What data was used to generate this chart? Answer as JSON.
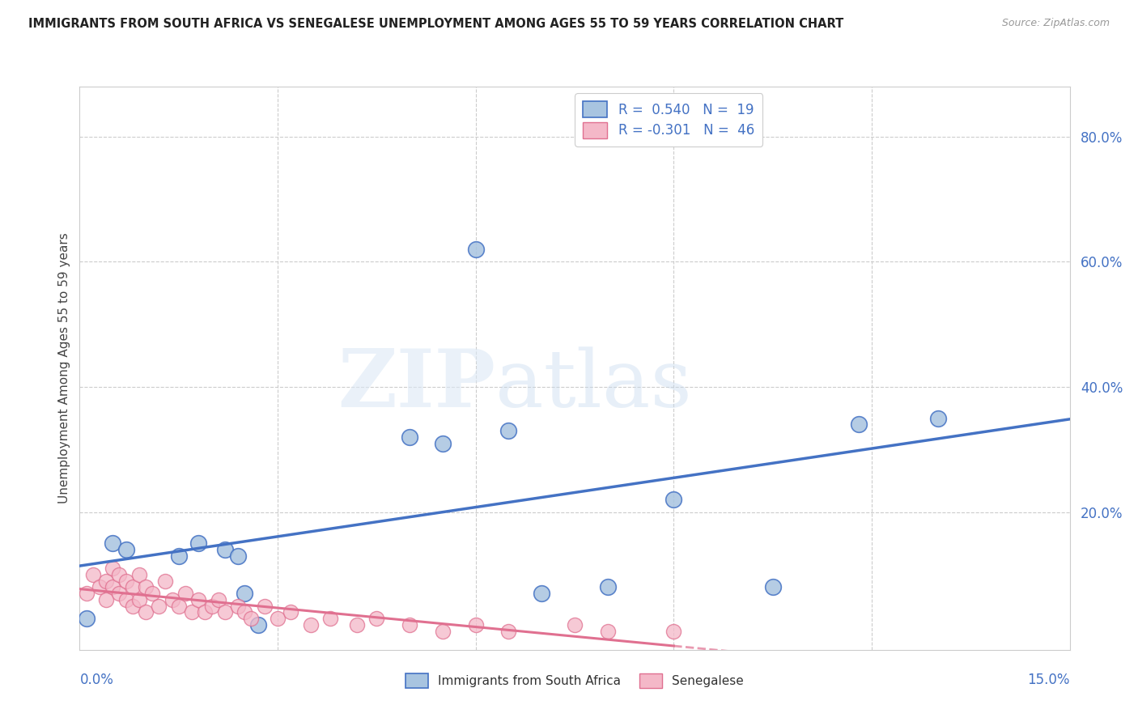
{
  "title": "IMMIGRANTS FROM SOUTH AFRICA VS SENEGALESE UNEMPLOYMENT AMONG AGES 55 TO 59 YEARS CORRELATION CHART",
  "source": "Source: ZipAtlas.com",
  "ylabel": "Unemployment Among Ages 55 to 59 years",
  "right_yticks": [
    "80.0%",
    "60.0%",
    "40.0%",
    "20.0%"
  ],
  "right_ytick_vals": [
    80.0,
    60.0,
    40.0,
    20.0
  ],
  "xlim": [
    0.0,
    15.0
  ],
  "ylim": [
    -2.0,
    88.0
  ],
  "blue_scatter_x": [
    0.1,
    0.5,
    0.7,
    1.5,
    1.8,
    2.2,
    2.4,
    2.5,
    2.7,
    5.0,
    5.5,
    6.0,
    6.5,
    7.0,
    8.0,
    9.0,
    10.5,
    11.8,
    13.0
  ],
  "blue_scatter_y": [
    3.0,
    15.0,
    14.0,
    13.0,
    15.0,
    14.0,
    13.0,
    7.0,
    2.0,
    32.0,
    31.0,
    62.0,
    33.0,
    7.0,
    8.0,
    22.0,
    8.0,
    34.0,
    35.0
  ],
  "pink_scatter_x": [
    0.1,
    0.2,
    0.3,
    0.4,
    0.4,
    0.5,
    0.5,
    0.6,
    0.6,
    0.7,
    0.7,
    0.8,
    0.8,
    0.9,
    0.9,
    1.0,
    1.0,
    1.1,
    1.2,
    1.3,
    1.4,
    1.5,
    1.6,
    1.7,
    1.8,
    1.9,
    2.0,
    2.1,
    2.2,
    2.4,
    2.5,
    2.6,
    2.8,
    3.0,
    3.2,
    3.5,
    3.8,
    4.2,
    4.5,
    5.0,
    5.5,
    6.0,
    6.5,
    7.5,
    8.0,
    9.0
  ],
  "pink_scatter_y": [
    7.0,
    10.0,
    8.0,
    9.0,
    6.0,
    11.0,
    8.0,
    10.0,
    7.0,
    9.0,
    6.0,
    8.0,
    5.0,
    10.0,
    6.0,
    8.0,
    4.0,
    7.0,
    5.0,
    9.0,
    6.0,
    5.0,
    7.0,
    4.0,
    6.0,
    4.0,
    5.0,
    6.0,
    4.0,
    5.0,
    4.0,
    3.0,
    5.0,
    3.0,
    4.0,
    2.0,
    3.0,
    2.0,
    3.0,
    2.0,
    1.0,
    2.0,
    1.0,
    2.0,
    1.0,
    1.0
  ],
  "blue_color": "#a8c4e0",
  "blue_line_color": "#4472c4",
  "pink_color": "#f4b8c8",
  "pink_line_color": "#e07090",
  "bg_color": "#ffffff",
  "grid_color": "#cccccc",
  "title_color": "#222222",
  "axis_label_color": "#4472c4",
  "legend_label_blue": "Immigrants from South Africa",
  "legend_label_pink": "Senegalese"
}
